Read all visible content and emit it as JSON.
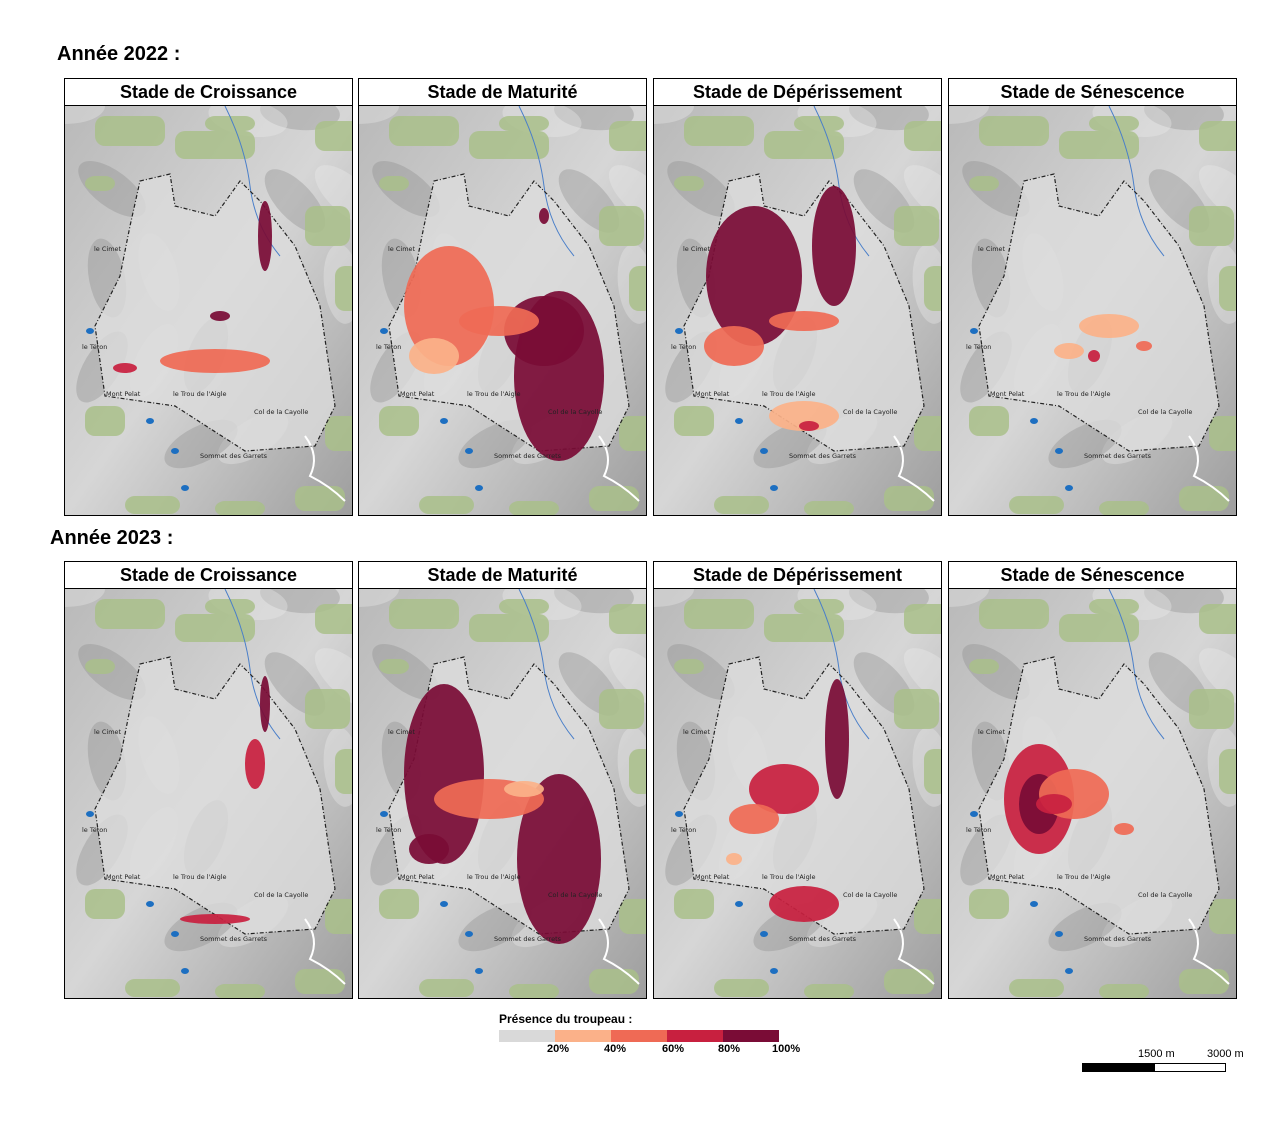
{
  "years": [
    {
      "title": "Année 2022 :",
      "panels": [
        {
          "id": "croissance",
          "title": "Stade de Croissance",
          "presence": [
            {
              "cx": 200,
              "cy": 130,
              "rx": 7,
              "ry": 35,
              "level": 4
            },
            {
              "cx": 150,
              "cy": 255,
              "rx": 55,
              "ry": 12,
              "level": 2
            },
            {
              "cx": 60,
              "cy": 262,
              "rx": 12,
              "ry": 5,
              "level": 3
            },
            {
              "cx": 155,
              "cy": 210,
              "rx": 10,
              "ry": 5,
              "level": 4
            }
          ]
        },
        {
          "id": "maturite",
          "title": "Stade de Maturité",
          "presence": [
            {
              "cx": 200,
              "cy": 270,
              "rx": 45,
              "ry": 85,
              "level": 4
            },
            {
              "cx": 185,
              "cy": 225,
              "rx": 40,
              "ry": 35,
              "level": 4
            },
            {
              "cx": 90,
              "cy": 200,
              "rx": 45,
              "ry": 60,
              "level": 2
            },
            {
              "cx": 140,
              "cy": 215,
              "rx": 40,
              "ry": 15,
              "level": 2
            },
            {
              "cx": 75,
              "cy": 250,
              "rx": 25,
              "ry": 18,
              "level": 1
            },
            {
              "cx": 185,
              "cy": 110,
              "rx": 5,
              "ry": 8,
              "level": 4
            }
          ]
        },
        {
          "id": "deperissement",
          "title": "Stade de Dépérissement",
          "presence": [
            {
              "cx": 100,
              "cy": 170,
              "rx": 48,
              "ry": 70,
              "level": 4
            },
            {
              "cx": 180,
              "cy": 140,
              "rx": 22,
              "ry": 60,
              "level": 4
            },
            {
              "cx": 80,
              "cy": 240,
              "rx": 30,
              "ry": 20,
              "level": 2
            },
            {
              "cx": 150,
              "cy": 215,
              "rx": 35,
              "ry": 10,
              "level": 2
            },
            {
              "cx": 150,
              "cy": 310,
              "rx": 35,
              "ry": 15,
              "level": 1
            },
            {
              "cx": 155,
              "cy": 320,
              "rx": 10,
              "ry": 5,
              "level": 3
            }
          ]
        },
        {
          "id": "senescence",
          "title": "Stade de Sénescence",
          "presence": [
            {
              "cx": 160,
              "cy": 220,
              "rx": 30,
              "ry": 12,
              "level": 1
            },
            {
              "cx": 195,
              "cy": 240,
              "rx": 8,
              "ry": 5,
              "level": 2
            },
            {
              "cx": 120,
              "cy": 245,
              "rx": 15,
              "ry": 8,
              "level": 1
            },
            {
              "cx": 145,
              "cy": 250,
              "rx": 6,
              "ry": 6,
              "level": 3
            }
          ]
        }
      ]
    },
    {
      "title": "Année 2023 :",
      "panels": [
        {
          "id": "croissance",
          "title": "Stade de Croissance",
          "presence": [
            {
              "cx": 200,
              "cy": 115,
              "rx": 5,
              "ry": 28,
              "level": 4
            },
            {
              "cx": 190,
              "cy": 175,
              "rx": 10,
              "ry": 25,
              "level": 3
            },
            {
              "cx": 150,
              "cy": 330,
              "rx": 35,
              "ry": 5,
              "level": 3
            }
          ]
        },
        {
          "id": "maturite",
          "title": "Stade de Maturité",
          "presence": [
            {
              "cx": 85,
              "cy": 185,
              "rx": 40,
              "ry": 90,
              "level": 4
            },
            {
              "cx": 200,
              "cy": 270,
              "rx": 42,
              "ry": 85,
              "level": 4
            },
            {
              "cx": 130,
              "cy": 210,
              "rx": 55,
              "ry": 20,
              "level": 2
            },
            {
              "cx": 70,
              "cy": 260,
              "rx": 20,
              "ry": 15,
              "level": 4
            },
            {
              "cx": 165,
              "cy": 200,
              "rx": 20,
              "ry": 8,
              "level": 1
            }
          ]
        },
        {
          "id": "deperissement",
          "title": "Stade de Dépérissement",
          "presence": [
            {
              "cx": 183,
              "cy": 150,
              "rx": 12,
              "ry": 60,
              "level": 4
            },
            {
              "cx": 130,
              "cy": 200,
              "rx": 35,
              "ry": 25,
              "level": 3
            },
            {
              "cx": 100,
              "cy": 230,
              "rx": 25,
              "ry": 15,
              "level": 2
            },
            {
              "cx": 150,
              "cy": 315,
              "rx": 35,
              "ry": 18,
              "level": 3
            },
            {
              "cx": 80,
              "cy": 270,
              "rx": 8,
              "ry": 6,
              "level": 1
            }
          ]
        },
        {
          "id": "senescence",
          "title": "Stade de Sénescence",
          "presence": [
            {
              "cx": 90,
              "cy": 210,
              "rx": 35,
              "ry": 55,
              "level": 3
            },
            {
              "cx": 90,
              "cy": 215,
              "rx": 20,
              "ry": 30,
              "level": 4
            },
            {
              "cx": 125,
              "cy": 205,
              "rx": 35,
              "ry": 25,
              "level": 2
            },
            {
              "cx": 105,
              "cy": 215,
              "rx": 18,
              "ry": 10,
              "level": 3
            },
            {
              "cx": 175,
              "cy": 240,
              "rx": 10,
              "ry": 6,
              "level": 2
            }
          ]
        }
      ]
    }
  ],
  "place_labels": [
    "le Cimet",
    "le Téton",
    "Mont Pelat",
    "le Trou de l'Aigle",
    "Col de la Cayolle",
    "Sommet des Garrets"
  ],
  "legend": {
    "title": "Présence du troupeau  :",
    "colors": [
      "#d9d9d9",
      "#fbb189",
      "#ef6a55",
      "#c8203f",
      "#7a0c36"
    ],
    "ticks": [
      "20%",
      "40%",
      "60%",
      "80%",
      "100%"
    ]
  },
  "scale": {
    "labels": [
      "1500 m",
      "3000 m"
    ]
  }
}
